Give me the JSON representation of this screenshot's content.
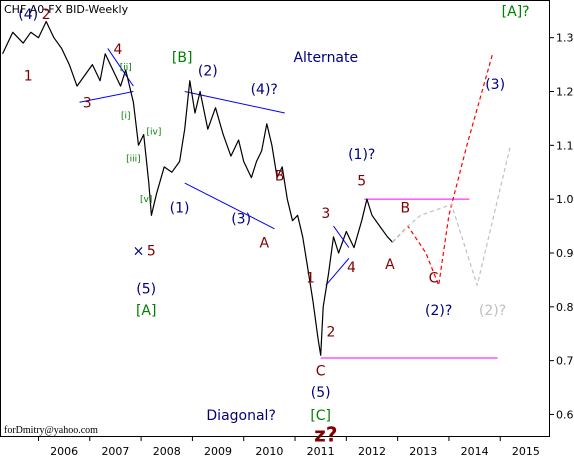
{
  "chart_data": {
    "type": "line",
    "title": "CHF A0-FX BID-Weekly",
    "credit": "forDmitry@yahoo.com",
    "x_ticks": [
      "2006",
      "2007",
      "2008",
      "2009",
      "2010",
      "2011",
      "2012",
      "2013",
      "2014",
      "2015"
    ],
    "y_ticks": [
      "0.600",
      "0.700",
      "0.800",
      "0.900",
      "1.000",
      "1.100",
      "1.200",
      "1.300"
    ],
    "ylim": [
      0.56,
      1.37
    ],
    "grid": false,
    "colors": {
      "price": "#000000",
      "main_count": "#800000",
      "green_labels": "#008000",
      "navy_labels": "#000080",
      "primary_forecast": "#ff0000",
      "alt_forecast": "#c0c0c0",
      "channel": "#0000ff",
      "level": "#ff00ff"
    },
    "series": [
      {
        "key": "price",
        "values": [
          [
            2005.3,
            1.27
          ],
          [
            2005.5,
            1.31
          ],
          [
            2005.7,
            1.29
          ],
          [
            2005.85,
            1.31
          ],
          [
            2006.0,
            1.3
          ],
          [
            2006.15,
            1.33
          ],
          [
            2006.3,
            1.3
          ],
          [
            2006.45,
            1.28
          ],
          [
            2006.6,
            1.25
          ],
          [
            2006.75,
            1.21
          ],
          [
            2006.9,
            1.23
          ],
          [
            2007.05,
            1.25
          ],
          [
            2007.2,
            1.22
          ],
          [
            2007.3,
            1.27
          ],
          [
            2007.45,
            1.24
          ],
          [
            2007.6,
            1.21
          ],
          [
            2007.7,
            1.24
          ],
          [
            2007.85,
            1.18
          ],
          [
            2007.95,
            1.1
          ],
          [
            2008.05,
            1.12
          ],
          [
            2008.15,
            1.03
          ],
          [
            2008.2,
            0.97
          ],
          [
            2008.3,
            1.01
          ],
          [
            2008.45,
            1.06
          ],
          [
            2008.6,
            1.05
          ],
          [
            2008.75,
            1.07
          ],
          [
            2008.85,
            1.13
          ],
          [
            2008.95,
            1.22
          ],
          [
            2009.05,
            1.16
          ],
          [
            2009.15,
            1.2
          ],
          [
            2009.3,
            1.13
          ],
          [
            2009.45,
            1.17
          ],
          [
            2009.6,
            1.12
          ],
          [
            2009.75,
            1.08
          ],
          [
            2009.9,
            1.11
          ],
          [
            2010.0,
            1.07
          ],
          [
            2010.15,
            1.04
          ],
          [
            2010.25,
            1.07
          ],
          [
            2010.35,
            1.09
          ],
          [
            2010.45,
            1.14
          ],
          [
            2010.55,
            1.1
          ],
          [
            2010.65,
            1.04
          ],
          [
            2010.75,
            1.06
          ],
          [
            2010.85,
            1.0
          ],
          [
            2010.95,
            0.96
          ],
          [
            2011.05,
            0.97
          ],
          [
            2011.15,
            0.93
          ],
          [
            2011.25,
            0.87
          ],
          [
            2011.35,
            0.81
          ],
          [
            2011.45,
            0.74
          ],
          [
            2011.5,
            0.71
          ],
          [
            2011.55,
            0.8
          ],
          [
            2011.65,
            0.86
          ],
          [
            2011.75,
            0.93
          ],
          [
            2011.85,
            0.9
          ],
          [
            2012.0,
            0.94
          ],
          [
            2012.15,
            0.91
          ],
          [
            2012.3,
            0.96
          ],
          [
            2012.4,
            1.0
          ],
          [
            2012.5,
            0.97
          ],
          [
            2012.65,
            0.95
          ],
          [
            2012.8,
            0.93
          ],
          [
            2012.9,
            0.92
          ]
        ]
      },
      {
        "key": "primary_forecast",
        "values": [
          [
            2012.9,
            0.92
          ],
          [
            2013.2,
            0.95
          ],
          [
            2013.55,
            0.9
          ],
          [
            2013.8,
            0.84
          ],
          [
            2014.0,
            0.97
          ],
          [
            2014.35,
            1.1
          ],
          [
            2014.85,
            1.27
          ]
        ]
      },
      {
        "key": "alt_forecast",
        "values": [
          [
            2012.9,
            0.92
          ],
          [
            2013.2,
            0.95
          ],
          [
            2013.45,
            0.97
          ],
          [
            2014.05,
            0.99
          ],
          [
            2014.55,
            0.84
          ],
          [
            2015.2,
            1.1
          ]
        ]
      }
    ],
    "lines": [
      {
        "key": "channel",
        "values": [
          [
            2007.35,
            1.28
          ],
          [
            2007.85,
            1.21
          ]
        ]
      },
      {
        "key": "channel",
        "values": [
          [
            2006.8,
            1.18
          ],
          [
            2007.85,
            1.2
          ]
        ]
      },
      {
        "key": "channel",
        "values": [
          [
            2008.85,
            1.2
          ],
          [
            2010.8,
            1.16
          ]
        ]
      },
      {
        "key": "channel",
        "values": [
          [
            2008.85,
            1.03
          ],
          [
            2010.6,
            0.945
          ]
        ]
      },
      {
        "key": "channel",
        "values": [
          [
            2011.75,
            0.95
          ],
          [
            2012.05,
            0.91
          ]
        ]
      },
      {
        "key": "channel",
        "values": [
          [
            2011.6,
            0.84
          ],
          [
            2012.05,
            0.89
          ]
        ]
      },
      {
        "key": "level",
        "values": [
          [
            2012.35,
            1.0
          ],
          [
            2014.4,
            1.0
          ]
        ]
      },
      {
        "key": "level",
        "values": [
          [
            2011.5,
            0.705
          ],
          [
            2014.95,
            0.705
          ]
        ]
      }
    ],
    "labels": [
      {
        "text": "(4)",
        "x": 2005.8,
        "y": 1.335,
        "c": "navy"
      },
      {
        "text": "2",
        "x": 2006.15,
        "y": 1.335,
        "c": "red"
      },
      {
        "text": "1",
        "x": 2005.8,
        "y": 1.22,
        "c": "red"
      },
      {
        "text": "4",
        "x": 2007.55,
        "y": 1.27,
        "c": "red"
      },
      {
        "text": "[ii]",
        "x": 2007.7,
        "y": 1.24,
        "c": "green",
        "s": 9
      },
      {
        "text": "3",
        "x": 2006.95,
        "y": 1.17,
        "c": "red"
      },
      {
        "text": "[i]",
        "x": 2007.7,
        "y": 1.15,
        "c": "green",
        "s": 9
      },
      {
        "text": "[iv]",
        "x": 2008.25,
        "y": 1.12,
        "c": "green",
        "s": 9
      },
      {
        "text": "[iii]",
        "x": 2007.85,
        "y": 1.07,
        "c": "green",
        "s": 9
      },
      {
        "text": "[v]",
        "x": 2008.1,
        "y": 0.995,
        "c": "green",
        "s": 9
      },
      {
        "text": "×",
        "x": 2007.95,
        "y": 0.895,
        "c": "navy"
      },
      {
        "text": "5",
        "x": 2008.2,
        "y": 0.895,
        "c": "red"
      },
      {
        "text": "(5)",
        "x": 2008.1,
        "y": 0.825,
        "c": "navy"
      },
      {
        "text": "[A]",
        "x": 2008.1,
        "y": 0.785,
        "c": "green"
      },
      {
        "text": "[B]",
        "x": 2008.8,
        "y": 1.255,
        "c": "green"
      },
      {
        "text": "(2)",
        "x": 2009.3,
        "y": 1.23,
        "c": "navy"
      },
      {
        "text": "(4)?",
        "x": 2010.4,
        "y": 1.195,
        "c": "navy"
      },
      {
        "text": "Alternate",
        "x": 2011.6,
        "y": 1.255,
        "c": "navy",
        "s": 14
      },
      {
        "text": "(3)",
        "x": 2014.9,
        "y": 1.205,
        "c": "navy"
      },
      {
        "text": "[A]?",
        "x": 2015.3,
        "y": 1.34,
        "c": "green"
      },
      {
        "text": "(1)",
        "x": 2008.75,
        "y": 0.975,
        "c": "navy"
      },
      {
        "text": "(3)",
        "x": 2009.95,
        "y": 0.955,
        "c": "navy"
      },
      {
        "text": "B",
        "x": 2010.7,
        "y": 1.035,
        "c": "red"
      },
      {
        "text": "A",
        "x": 2010.4,
        "y": 0.91,
        "c": "red"
      },
      {
        "text": "(1)?",
        "x": 2012.3,
        "y": 1.075,
        "c": "navy"
      },
      {
        "text": "5",
        "x": 2012.3,
        "y": 1.025,
        "c": "red"
      },
      {
        "text": "B",
        "x": 2013.15,
        "y": 0.975,
        "c": "red"
      },
      {
        "text": "3",
        "x": 2011.6,
        "y": 0.965,
        "c": "red"
      },
      {
        "text": "4",
        "x": 2012.1,
        "y": 0.865,
        "c": "red"
      },
      {
        "text": "A",
        "x": 2012.85,
        "y": 0.87,
        "c": "red"
      },
      {
        "text": "C",
        "x": 2013.7,
        "y": 0.845,
        "c": "red"
      },
      {
        "text": "(2)?",
        "x": 2013.8,
        "y": 0.785,
        "c": "navy"
      },
      {
        "text": "(2)?",
        "x": 2014.85,
        "y": 0.785,
        "c": "gray"
      },
      {
        "text": "1",
        "x": 2011.3,
        "y": 0.845,
        "c": "red"
      },
      {
        "text": "2",
        "x": 2011.7,
        "y": 0.745,
        "c": "red"
      },
      {
        "text": "C",
        "x": 2011.5,
        "y": 0.672,
        "c": "red"
      },
      {
        "text": "(5)",
        "x": 2011.5,
        "y": 0.632,
        "c": "navy"
      },
      {
        "text": "Diagonal?",
        "x": 2009.95,
        "y": 0.59,
        "c": "navy",
        "s": 14
      },
      {
        "text": "[C]",
        "x": 2011.5,
        "y": 0.59,
        "c": "green"
      },
      {
        "text": "z?",
        "x": 2011.6,
        "y": 0.55,
        "c": "red",
        "s": 20,
        "b": true
      }
    ]
  }
}
